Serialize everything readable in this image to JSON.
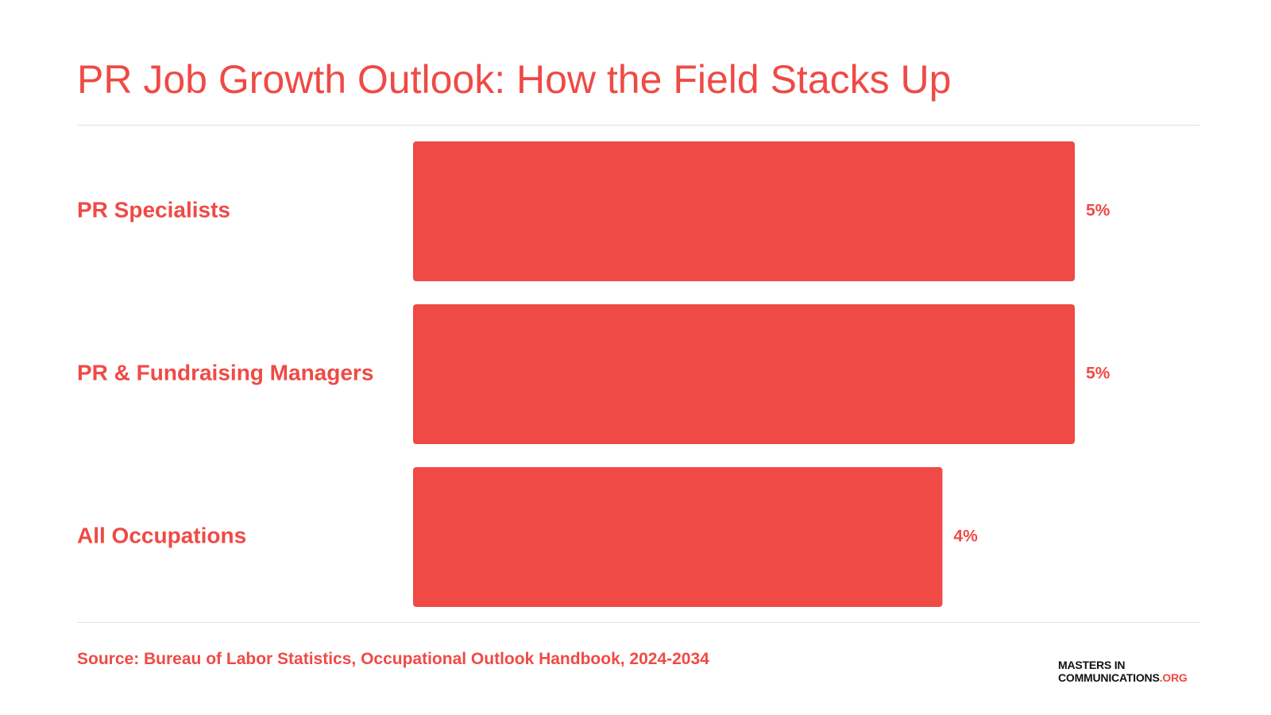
{
  "chart_data": {
    "type": "bar",
    "orientation": "horizontal",
    "title": "PR Job Growth Outlook: How the Field Stacks Up",
    "categories": [
      "PR Specialists",
      "PR & Fundraising Managers",
      "All Occupations"
    ],
    "values": [
      5,
      5,
      4
    ],
    "value_labels": [
      "5%",
      "5%",
      "4%"
    ],
    "unit": "%",
    "xlim": [
      0,
      5
    ],
    "grid": false,
    "legend": "none",
    "bar_color": "#ef4a46",
    "text_color": "#ef4a46"
  },
  "footer": {
    "source": "Source: Bureau of Labor Statistics, Occupational Outlook Handbook, 2024-2034"
  },
  "logo": {
    "line1": "MASTERS IN",
    "line2_main": "COMMUNICATIONS",
    "line2_tld": ".ORG"
  }
}
